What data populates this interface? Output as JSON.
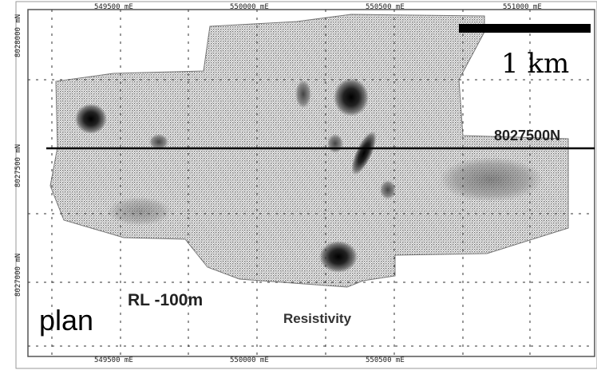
{
  "map": {
    "view": "plan",
    "level": "RL -100m",
    "product": "Resistivity",
    "scale_bar": "1 km",
    "section_line": "8027500N",
    "top_ticks": [
      "549500 mE",
      "550000 mE",
      "550500 mE",
      "551000 mE"
    ],
    "bottom_ticks": [
      "549500 mE",
      "550000 mE",
      "550500 mE"
    ],
    "left_ticks": [
      "8028000 mN",
      "8027500 mN",
      "8027000 mN"
    ],
    "colors": {
      "high": "#1a1a1a",
      "low": "#ffffff",
      "fill": "#b8b8b8"
    }
  }
}
